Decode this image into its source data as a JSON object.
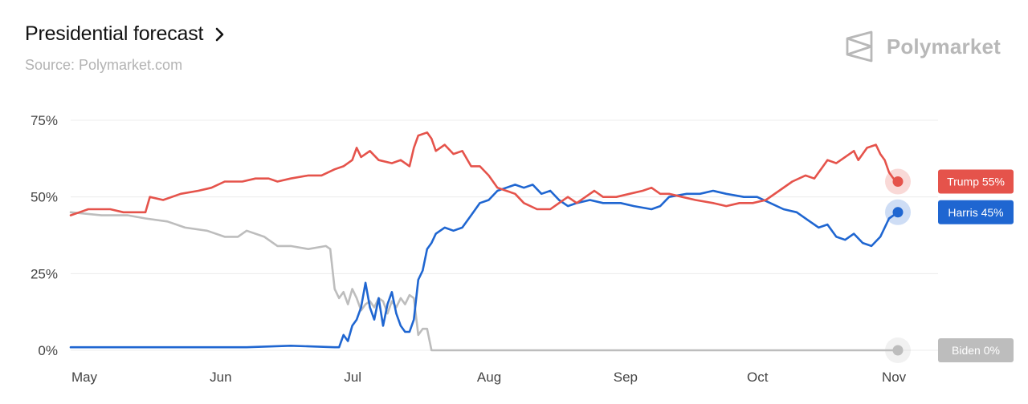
{
  "header": {
    "title": "Presidential forecast",
    "subtitle": "Source: Polymarket.com"
  },
  "brand": {
    "name": "Polymarket",
    "icon": "polymarket-logo-icon"
  },
  "chart_data": {
    "type": "line",
    "ylim": [
      0,
      75
    ],
    "yticks": [
      "0%",
      "25%",
      "50%",
      "75%"
    ],
    "ytick_values": [
      0,
      25,
      50,
      75
    ],
    "x_range": [
      "2024-05-01",
      "2024-11-05"
    ],
    "xticks": [
      {
        "date": "2024-05-01",
        "label": "May"
      },
      {
        "date": "2024-06-01",
        "label": "Jun"
      },
      {
        "date": "2024-07-01",
        "label": "Jul"
      },
      {
        "date": "2024-08-01",
        "label": "Aug"
      },
      {
        "date": "2024-09-01",
        "label": "Sep"
      },
      {
        "date": "2024-10-01",
        "label": "Oct"
      },
      {
        "date": "2024-11-01",
        "label": "Nov"
      }
    ],
    "grid": true,
    "legend": "right",
    "series": [
      {
        "name": "Trump",
        "end_label": "Trump  55%",
        "color": "#e5534b",
        "points": [
          [
            "2024-05-01",
            44
          ],
          [
            "2024-05-03",
            45
          ],
          [
            "2024-05-05",
            46
          ],
          [
            "2024-05-10",
            46
          ],
          [
            "2024-05-13",
            45
          ],
          [
            "2024-05-18",
            45
          ],
          [
            "2024-05-19",
            50
          ],
          [
            "2024-05-22",
            49
          ],
          [
            "2024-05-26",
            51
          ],
          [
            "2024-05-30",
            52
          ],
          [
            "2024-06-02",
            53
          ],
          [
            "2024-06-05",
            55
          ],
          [
            "2024-06-09",
            55
          ],
          [
            "2024-06-12",
            56
          ],
          [
            "2024-06-15",
            56
          ],
          [
            "2024-06-17",
            55
          ],
          [
            "2024-06-20",
            56
          ],
          [
            "2024-06-24",
            57
          ],
          [
            "2024-06-27",
            57
          ],
          [
            "2024-06-30",
            59
          ],
          [
            "2024-07-02",
            60
          ],
          [
            "2024-07-04",
            62
          ],
          [
            "2024-07-05",
            66
          ],
          [
            "2024-07-06",
            63
          ],
          [
            "2024-07-08",
            65
          ],
          [
            "2024-07-10",
            62
          ],
          [
            "2024-07-13",
            61
          ],
          [
            "2024-07-15",
            62
          ],
          [
            "2024-07-17",
            60
          ],
          [
            "2024-07-18",
            66
          ],
          [
            "2024-07-19",
            70
          ],
          [
            "2024-07-21",
            71
          ],
          [
            "2024-07-22",
            69
          ],
          [
            "2024-07-23",
            65
          ],
          [
            "2024-07-25",
            67
          ],
          [
            "2024-07-27",
            64
          ],
          [
            "2024-07-29",
            65
          ],
          [
            "2024-07-31",
            60
          ],
          [
            "2024-08-02",
            60
          ],
          [
            "2024-08-04",
            57
          ],
          [
            "2024-08-06",
            53
          ],
          [
            "2024-08-08",
            52
          ],
          [
            "2024-08-10",
            51
          ],
          [
            "2024-08-12",
            48
          ],
          [
            "2024-08-15",
            46
          ],
          [
            "2024-08-18",
            46
          ],
          [
            "2024-08-20",
            48
          ],
          [
            "2024-08-22",
            50
          ],
          [
            "2024-08-24",
            48
          ],
          [
            "2024-08-26",
            50
          ],
          [
            "2024-08-28",
            52
          ],
          [
            "2024-08-30",
            50
          ],
          [
            "2024-09-02",
            50
          ],
          [
            "2024-09-05",
            51
          ],
          [
            "2024-09-08",
            52
          ],
          [
            "2024-09-10",
            53
          ],
          [
            "2024-09-12",
            51
          ],
          [
            "2024-09-14",
            51
          ],
          [
            "2024-09-17",
            50
          ],
          [
            "2024-09-20",
            49
          ],
          [
            "2024-09-24",
            48
          ],
          [
            "2024-09-27",
            47
          ],
          [
            "2024-09-30",
            48
          ],
          [
            "2024-10-03",
            48
          ],
          [
            "2024-10-06",
            49
          ],
          [
            "2024-10-09",
            52
          ],
          [
            "2024-10-12",
            55
          ],
          [
            "2024-10-15",
            57
          ],
          [
            "2024-10-17",
            56
          ],
          [
            "2024-10-19",
            60
          ],
          [
            "2024-10-20",
            62
          ],
          [
            "2024-10-22",
            61
          ],
          [
            "2024-10-24",
            63
          ],
          [
            "2024-10-26",
            65
          ],
          [
            "2024-10-27",
            62
          ],
          [
            "2024-10-29",
            66
          ],
          [
            "2024-10-31",
            67
          ],
          [
            "2024-11-01",
            64
          ],
          [
            "2024-11-02",
            62
          ],
          [
            "2024-11-03",
            58
          ],
          [
            "2024-11-04",
            56
          ],
          [
            "2024-11-05",
            55
          ]
        ]
      },
      {
        "name": "Harris",
        "end_label": "Harris  45%",
        "color": "#1f66d1",
        "points": [
          [
            "2024-05-01",
            1
          ],
          [
            "2024-05-20",
            1
          ],
          [
            "2024-06-10",
            1
          ],
          [
            "2024-06-20",
            1.5
          ],
          [
            "2024-06-30",
            1
          ],
          [
            "2024-07-01",
            1
          ],
          [
            "2024-07-02",
            5
          ],
          [
            "2024-07-03",
            3
          ],
          [
            "2024-07-04",
            8
          ],
          [
            "2024-07-05",
            10
          ],
          [
            "2024-07-06",
            14
          ],
          [
            "2024-07-07",
            22
          ],
          [
            "2024-07-08",
            14
          ],
          [
            "2024-07-09",
            10
          ],
          [
            "2024-07-10",
            17
          ],
          [
            "2024-07-11",
            8
          ],
          [
            "2024-07-12",
            15
          ],
          [
            "2024-07-13",
            19
          ],
          [
            "2024-07-14",
            12
          ],
          [
            "2024-07-15",
            8
          ],
          [
            "2024-07-16",
            6
          ],
          [
            "2024-07-17",
            6
          ],
          [
            "2024-07-18",
            10
          ],
          [
            "2024-07-19",
            23
          ],
          [
            "2024-07-20",
            26
          ],
          [
            "2024-07-21",
            33
          ],
          [
            "2024-07-22",
            35
          ],
          [
            "2024-07-23",
            38
          ],
          [
            "2024-07-25",
            40
          ],
          [
            "2024-07-27",
            39
          ],
          [
            "2024-07-29",
            40
          ],
          [
            "2024-07-31",
            44
          ],
          [
            "2024-08-02",
            48
          ],
          [
            "2024-08-04",
            49
          ],
          [
            "2024-08-06",
            52
          ],
          [
            "2024-08-08",
            53
          ],
          [
            "2024-08-10",
            54
          ],
          [
            "2024-08-12",
            53
          ],
          [
            "2024-08-14",
            54
          ],
          [
            "2024-08-16",
            51
          ],
          [
            "2024-08-18",
            52
          ],
          [
            "2024-08-20",
            49
          ],
          [
            "2024-08-22",
            47
          ],
          [
            "2024-08-24",
            48
          ],
          [
            "2024-08-27",
            49
          ],
          [
            "2024-08-30",
            48
          ],
          [
            "2024-09-03",
            48
          ],
          [
            "2024-09-06",
            47
          ],
          [
            "2024-09-10",
            46
          ],
          [
            "2024-09-12",
            47
          ],
          [
            "2024-09-14",
            50
          ],
          [
            "2024-09-18",
            51
          ],
          [
            "2024-09-21",
            51
          ],
          [
            "2024-09-24",
            52
          ],
          [
            "2024-09-27",
            51
          ],
          [
            "2024-10-01",
            50
          ],
          [
            "2024-10-04",
            50
          ],
          [
            "2024-10-07",
            48
          ],
          [
            "2024-10-10",
            46
          ],
          [
            "2024-10-13",
            45
          ],
          [
            "2024-10-16",
            42
          ],
          [
            "2024-10-18",
            40
          ],
          [
            "2024-10-20",
            41
          ],
          [
            "2024-10-22",
            37
          ],
          [
            "2024-10-24",
            36
          ],
          [
            "2024-10-26",
            38
          ],
          [
            "2024-10-28",
            35
          ],
          [
            "2024-10-30",
            34
          ],
          [
            "2024-11-01",
            37
          ],
          [
            "2024-11-02",
            40
          ],
          [
            "2024-11-03",
            43
          ],
          [
            "2024-11-05",
            45
          ]
        ]
      },
      {
        "name": "Biden",
        "end_label": "Biden  0%",
        "color": "#bdbdbd",
        "points": [
          [
            "2024-05-01",
            45
          ],
          [
            "2024-05-08",
            44
          ],
          [
            "2024-05-14",
            44
          ],
          [
            "2024-05-18",
            43
          ],
          [
            "2024-05-23",
            42
          ],
          [
            "2024-05-27",
            40
          ],
          [
            "2024-06-01",
            39
          ],
          [
            "2024-06-05",
            37
          ],
          [
            "2024-06-08",
            37
          ],
          [
            "2024-06-10",
            39
          ],
          [
            "2024-06-14",
            37
          ],
          [
            "2024-06-17",
            34
          ],
          [
            "2024-06-20",
            34
          ],
          [
            "2024-06-24",
            33
          ],
          [
            "2024-06-28",
            34
          ],
          [
            "2024-06-29",
            33
          ],
          [
            "2024-06-30",
            20
          ],
          [
            "2024-07-01",
            17
          ],
          [
            "2024-07-02",
            19
          ],
          [
            "2024-07-03",
            15
          ],
          [
            "2024-07-04",
            20
          ],
          [
            "2024-07-05",
            17
          ],
          [
            "2024-07-06",
            13
          ],
          [
            "2024-07-07",
            15
          ],
          [
            "2024-07-08",
            16
          ],
          [
            "2024-07-09",
            14
          ],
          [
            "2024-07-10",
            17
          ],
          [
            "2024-07-11",
            16
          ],
          [
            "2024-07-12",
            12
          ],
          [
            "2024-07-13",
            16
          ],
          [
            "2024-07-14",
            14
          ],
          [
            "2024-07-15",
            17
          ],
          [
            "2024-07-16",
            15
          ],
          [
            "2024-07-17",
            18
          ],
          [
            "2024-07-18",
            17
          ],
          [
            "2024-07-19",
            5
          ],
          [
            "2024-07-20",
            7
          ],
          [
            "2024-07-21",
            7
          ],
          [
            "2024-07-22",
            0
          ],
          [
            "2024-08-01",
            0
          ],
          [
            "2024-09-01",
            0
          ],
          [
            "2024-10-01",
            0
          ],
          [
            "2024-11-05",
            0
          ]
        ]
      }
    ]
  }
}
